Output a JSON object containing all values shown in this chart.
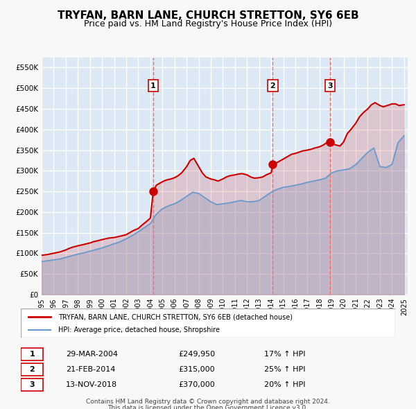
{
  "title": "TRYFAN, BARN LANE, CHURCH STRETTON, SY6 6EB",
  "subtitle": "Price paid vs. HM Land Registry's House Price Index (HPI)",
  "title_fontsize": 11,
  "subtitle_fontsize": 9,
  "background_color": "#dce9f5",
  "plot_bg_color": "#dce9f5",
  "grid_color": "#ffffff",
  "ylim": [
    0,
    575000
  ],
  "yticks": [
    0,
    50000,
    100000,
    150000,
    200000,
    250000,
    300000,
    350000,
    400000,
    450000,
    500000,
    550000
  ],
  "ytick_labels": [
    "£0",
    "£50K",
    "£100K",
    "£150K",
    "£200K",
    "£250K",
    "£300K",
    "£350K",
    "£400K",
    "£450K",
    "£500K",
    "£550K"
  ],
  "xlim_start": 1995.0,
  "xlim_end": 2025.3,
  "xticks": [
    1995,
    1996,
    1997,
    1998,
    1999,
    2000,
    2001,
    2002,
    2003,
    2004,
    2005,
    2006,
    2007,
    2008,
    2009,
    2010,
    2011,
    2012,
    2013,
    2014,
    2015,
    2016,
    2017,
    2018,
    2019,
    2020,
    2021,
    2022,
    2023,
    2024,
    2025
  ],
  "sale_color": "#cc0000",
  "hpi_color": "#6699cc",
  "sale_linewidth": 1.5,
  "hpi_linewidth": 1.2,
  "legend_sale_label": "TRYFAN, BARN LANE, CHURCH STRETTON, SY6 6EB (detached house)",
  "legend_hpi_label": "HPI: Average price, detached house, Shropshire",
  "transactions": [
    {
      "id": 1,
      "date": "29-MAR-2004",
      "x": 2004.24,
      "price": 249950,
      "pct": "17%",
      "direction": "↑"
    },
    {
      "id": 2,
      "date": "21-FEB-2014",
      "x": 2014.13,
      "price": 315000,
      "pct": "25%",
      "direction": "↑"
    },
    {
      "id": 3,
      "date": "13-NOV-2018",
      "x": 2018.87,
      "price": 370000,
      "pct": "20%",
      "direction": "↑"
    }
  ],
  "footer1": "Contains HM Land Registry data © Crown copyright and database right 2024.",
  "footer2": "This data is licensed under the Open Government Licence v3.0.",
  "vline_color": "#ff6666",
  "marker_color": "#cc0000",
  "marker_size": 8,
  "sale_data_x": [
    1995.0,
    1995.5,
    1996.0,
    1996.5,
    1997.0,
    1997.3,
    1997.6,
    1998.0,
    1998.3,
    1998.6,
    1999.0,
    1999.3,
    1999.6,
    2000.0,
    2000.3,
    2000.6,
    2001.0,
    2001.3,
    2001.6,
    2002.0,
    2002.3,
    2002.6,
    2003.0,
    2003.3,
    2003.6,
    2004.0,
    2004.24,
    2004.5,
    2004.8,
    2005.1,
    2005.4,
    2005.7,
    2006.0,
    2006.3,
    2006.6,
    2007.0,
    2007.3,
    2007.6,
    2008.0,
    2008.3,
    2008.6,
    2009.0,
    2009.3,
    2009.6,
    2010.0,
    2010.3,
    2010.6,
    2011.0,
    2011.3,
    2011.6,
    2012.0,
    2012.3,
    2012.6,
    2013.0,
    2013.3,
    2013.6,
    2014.0,
    2014.13,
    2014.5,
    2014.8,
    2015.1,
    2015.4,
    2015.7,
    2016.0,
    2016.3,
    2016.6,
    2017.0,
    2017.3,
    2017.6,
    2018.0,
    2018.3,
    2018.6,
    2018.87,
    2019.1,
    2019.4,
    2019.7,
    2020.0,
    2020.3,
    2020.6,
    2021.0,
    2021.3,
    2021.6,
    2022.0,
    2022.3,
    2022.6,
    2023.0,
    2023.3,
    2023.6,
    2024.0,
    2024.3,
    2024.6,
    2025.0
  ],
  "sale_data_y": [
    95000,
    97000,
    100000,
    103000,
    108000,
    112000,
    115000,
    118000,
    120000,
    122000,
    125000,
    128000,
    130000,
    133000,
    135000,
    137000,
    138000,
    140000,
    142000,
    145000,
    150000,
    155000,
    160000,
    168000,
    175000,
    185000,
    249950,
    265000,
    270000,
    275000,
    278000,
    280000,
    283000,
    288000,
    295000,
    310000,
    325000,
    330000,
    310000,
    295000,
    285000,
    280000,
    278000,
    275000,
    280000,
    285000,
    288000,
    290000,
    292000,
    293000,
    290000,
    285000,
    282000,
    283000,
    285000,
    290000,
    295000,
    315000,
    320000,
    325000,
    330000,
    335000,
    340000,
    342000,
    345000,
    348000,
    350000,
    352000,
    355000,
    358000,
    362000,
    368000,
    370000,
    365000,
    362000,
    360000,
    370000,
    390000,
    400000,
    415000,
    430000,
    440000,
    450000,
    460000,
    465000,
    458000,
    455000,
    458000,
    462000,
    462000,
    458000,
    460000
  ],
  "hpi_data_x": [
    1995.0,
    1995.5,
    1996.0,
    1996.5,
    1997.0,
    1997.5,
    1998.0,
    1998.5,
    1999.0,
    1999.5,
    2000.0,
    2000.5,
    2001.0,
    2001.5,
    2002.0,
    2002.5,
    2003.0,
    2003.5,
    2004.0,
    2004.5,
    2005.0,
    2005.5,
    2006.0,
    2006.5,
    2007.0,
    2007.5,
    2008.0,
    2008.5,
    2009.0,
    2009.5,
    2010.0,
    2010.5,
    2011.0,
    2011.5,
    2012.0,
    2012.5,
    2013.0,
    2013.5,
    2014.0,
    2014.5,
    2015.0,
    2015.5,
    2016.0,
    2016.5,
    2017.0,
    2017.5,
    2018.0,
    2018.5,
    2019.0,
    2019.5,
    2020.0,
    2020.5,
    2021.0,
    2021.5,
    2022.0,
    2022.5,
    2023.0,
    2023.5,
    2024.0,
    2024.5,
    2025.0
  ],
  "hpi_data_y": [
    80000,
    82000,
    84000,
    86000,
    90000,
    94000,
    98000,
    101000,
    105000,
    109000,
    113000,
    118000,
    123000,
    128000,
    135000,
    143000,
    152000,
    162000,
    172000,
    195000,
    208000,
    215000,
    220000,
    228000,
    238000,
    248000,
    245000,
    235000,
    225000,
    218000,
    220000,
    222000,
    225000,
    228000,
    225000,
    225000,
    228000,
    238000,
    248000,
    255000,
    260000,
    262000,
    265000,
    268000,
    272000,
    275000,
    278000,
    282000,
    295000,
    300000,
    302000,
    305000,
    315000,
    330000,
    345000,
    355000,
    310000,
    308000,
    315000,
    368000,
    385000
  ]
}
